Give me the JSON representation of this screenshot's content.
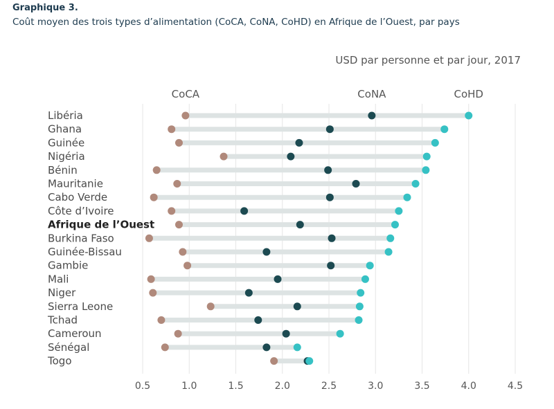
{
  "figure": {
    "label": "Graphique 3.",
    "title": "Coût moyen des trois types d’alimentation (CoCA, CoNA, CoHD) en Afrique de l’Ouest, par pays",
    "unit_note": "USD par personne et par jour, 2017"
  },
  "colors": {
    "coca": "#b0897b",
    "cona": "#1c4a51",
    "cohd": "#36c1c4",
    "range_bar": "#dde3e3",
    "grid": "#e6e6e6"
  },
  "chart_data": {
    "type": "scatter",
    "subtype": "dumbbell",
    "title": "Coût moyen des trois types d’alimentation (CoCA, CoNA, CoHD) en Afrique de l’Ouest, par pays",
    "xlabel": "USD par personne et par jour, 2017",
    "ylabel": "",
    "xlim": [
      0.5,
      4.5
    ],
    "xticks": [
      0.5,
      1.0,
      1.5,
      2.0,
      2.5,
      3.0,
      3.5,
      4.0,
      4.5
    ],
    "xtick_labels": [
      "0.5",
      "1.0",
      "1.5",
      "2.0",
      "2.5",
      "3.0",
      "3.5",
      "4.0",
      "4.5"
    ],
    "grid": true,
    "highlight": "Afrique de l’Ouest",
    "categories": [
      "Libéria",
      "Ghana",
      "Guinée",
      "Nigéria",
      "Bénin",
      "Mauritanie",
      "Cabo Verde",
      "Côte d’Ivoire",
      "Afrique de l’Ouest",
      "Burkina Faso",
      "Guinée-Bissau",
      "Gambie",
      "Mali",
      "Niger",
      "Sierra Leone",
      "Tchad",
      "Cameroun",
      "Sénégal",
      "Togo"
    ],
    "series": [
      {
        "name": "CoCA",
        "values": [
          0.96,
          0.81,
          0.89,
          1.37,
          0.65,
          0.87,
          0.62,
          0.81,
          0.89,
          0.57,
          0.93,
          0.98,
          0.59,
          0.61,
          1.23,
          0.7,
          0.88,
          0.74,
          1.91
        ]
      },
      {
        "name": "CoNA",
        "values": [
          2.96,
          2.51,
          2.18,
          2.09,
          2.49,
          2.79,
          2.51,
          1.59,
          2.19,
          2.53,
          1.83,
          2.52,
          1.95,
          1.64,
          2.16,
          1.74,
          2.04,
          1.83,
          2.27
        ]
      },
      {
        "name": "CoHD",
        "values": [
          4.0,
          3.74,
          3.64,
          3.55,
          3.54,
          3.43,
          3.34,
          3.25,
          3.21,
          3.16,
          3.14,
          2.94,
          2.89,
          2.84,
          2.83,
          2.82,
          2.62,
          2.16,
          2.29
        ]
      }
    ]
  }
}
